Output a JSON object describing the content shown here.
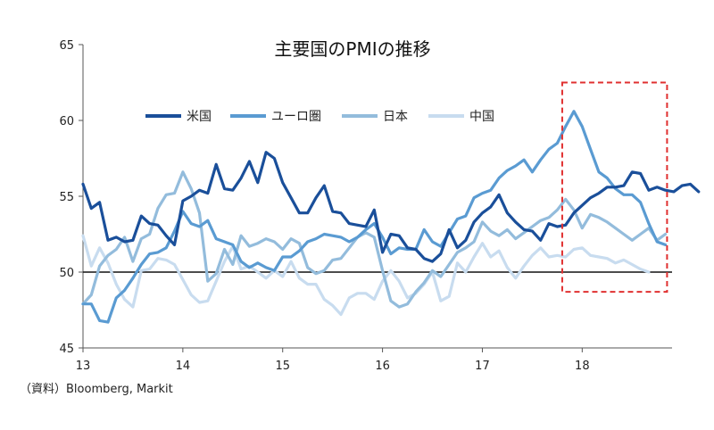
{
  "source": "（資料）Bloomberg, Markit",
  "chart_data": {
    "type": "line",
    "title": "主要国のPMIの推移",
    "xlabel": "",
    "ylabel": "",
    "x_tick_labels": [
      "13",
      "14",
      "15",
      "16",
      "17",
      "18"
    ],
    "x_tick_values": [
      2013,
      2014,
      2015,
      2016,
      2017,
      2018
    ],
    "xlim": [
      2013,
      2018.9
    ],
    "y_ticks": [
      45,
      50,
      55,
      60,
      65
    ],
    "ylim": [
      45,
      65
    ],
    "reference_line": 50,
    "legend_position": "top-center",
    "highlight_box": {
      "x_from": 2017.8,
      "x_to": 2018.85,
      "y_from": 48.7,
      "y_to": 62.5,
      "color": "#e03030"
    },
    "series": [
      {
        "name": "米国",
        "color": "#1a4f9a",
        "values": [
          55.8,
          54.2,
          54.6,
          52.1,
          52.3,
          52.0,
          52.1,
          53.7,
          53.2,
          53.1,
          52.4,
          51.8,
          54.7,
          55.0,
          55.4,
          55.2,
          57.1,
          55.5,
          55.4,
          56.2,
          57.3,
          55.9,
          57.9,
          57.5,
          55.9,
          54.9,
          53.9,
          53.9,
          54.9,
          55.7,
          54.0,
          53.9,
          53.2,
          53.1,
          53.0,
          54.1,
          51.3,
          52.5,
          52.4,
          51.6,
          51.5,
          50.9,
          50.7,
          51.2,
          52.8,
          51.6,
          52.1,
          53.3,
          53.9,
          54.3,
          55.1,
          53.9,
          53.3,
          52.8,
          52.7,
          52.1,
          53.2,
          53.0,
          53.1,
          53.9,
          54.4,
          54.9,
          55.2,
          55.6,
          55.6,
          55.7,
          56.6,
          56.5,
          55.4,
          55.6,
          55.4,
          55.3,
          55.7,
          55.8,
          55.3
        ]
      },
      {
        "name": "ユーロ圏",
        "color": "#5a9bd2",
        "values": [
          47.9,
          47.9,
          46.8,
          46.7,
          48.3,
          48.8,
          49.6,
          50.5,
          51.2,
          51.3,
          51.6,
          52.7,
          54.0,
          53.2,
          53.0,
          53.4,
          52.2,
          52.0,
          51.8,
          50.7,
          50.3,
          50.6,
          50.3,
          50.1,
          51.0,
          51.0,
          51.4,
          52.0,
          52.2,
          52.5,
          52.4,
          52.3,
          52.0,
          52.3,
          52.8,
          53.2,
          52.3,
          51.2,
          51.6,
          51.5,
          51.5,
          52.8,
          52.0,
          51.7,
          52.6,
          53.5,
          53.7,
          54.9,
          55.2,
          55.4,
          56.2,
          56.7,
          57.0,
          57.4,
          56.6,
          57.4,
          58.1,
          58.5,
          59.6,
          60.6,
          59.6,
          58.1,
          56.6,
          56.2,
          55.5,
          55.1,
          55.1,
          54.6,
          53.2,
          52.0,
          51.8
        ]
      },
      {
        "name": "日本",
        "color": "#93bcdc",
        "values": [
          47.9,
          48.5,
          50.4,
          51.1,
          51.5,
          52.3,
          50.7,
          52.2,
          52.5,
          54.2,
          55.1,
          55.2,
          56.6,
          55.5,
          53.9,
          49.4,
          49.9,
          51.5,
          50.5,
          52.4,
          51.7,
          51.9,
          52.2,
          52.0,
          51.5,
          52.2,
          51.9,
          50.3,
          49.9,
          50.1,
          50.8,
          50.9,
          51.6,
          52.3,
          52.6,
          52.3,
          50.1,
          48.1,
          47.7,
          47.9,
          48.7,
          49.3,
          50.1,
          49.7,
          50.5,
          51.3,
          51.6,
          52.0,
          53.3,
          52.7,
          52.4,
          52.8,
          52.2,
          52.6,
          53.0,
          53.4,
          53.6,
          54.1,
          54.8,
          54.1,
          52.9,
          53.8,
          53.6,
          53.3,
          52.9,
          52.5,
          52.1,
          52.5,
          52.9,
          52.1,
          52.5
        ]
      },
      {
        "name": "中国",
        "color": "#c8dcef",
        "values": [
          52.4,
          50.4,
          51.6,
          50.6,
          49.2,
          48.2,
          47.7,
          50.1,
          50.2,
          50.9,
          50.8,
          50.5,
          49.5,
          48.5,
          48.0,
          48.1,
          49.4,
          50.7,
          51.7,
          50.2,
          50.4,
          50.0,
          49.6,
          50.1,
          49.7,
          50.7,
          49.6,
          49.2,
          49.2,
          48.2,
          47.8,
          47.2,
          48.3,
          48.6,
          48.6,
          48.2,
          49.4,
          50.1,
          49.4,
          48.3,
          48.6,
          49.2,
          50.0,
          48.1,
          48.4,
          50.6,
          50.0,
          51.0,
          51.9,
          51.0,
          51.4,
          50.3,
          49.6,
          50.4,
          51.1,
          51.6,
          51.0,
          51.1,
          51.0,
          51.5,
          51.6,
          51.1,
          51.0,
          50.9,
          50.6,
          50.8,
          50.5,
          50.2,
          50.0
        ]
      }
    ]
  }
}
